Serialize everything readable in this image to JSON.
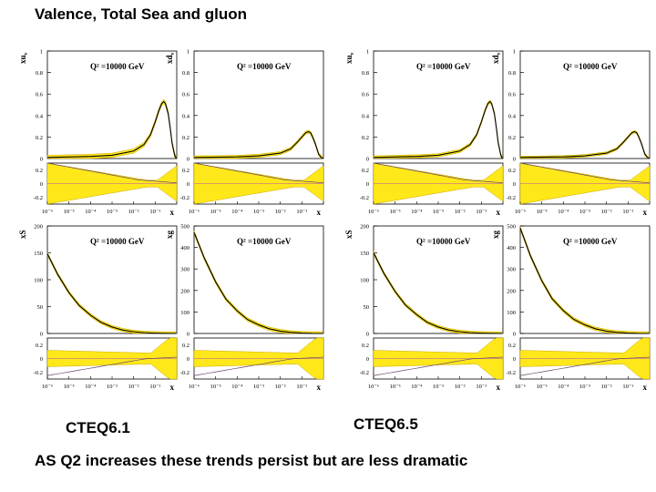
{
  "slide": {
    "title": "Valence, Total Sea and gluon",
    "left_label": "CTEQ6.1",
    "right_label": "CTEQ6.5",
    "caption": "AS Q2 increases these trends persist but are less dramatic"
  },
  "colors": {
    "band": "#ffe81a",
    "band_edge": "#c9a800",
    "central": "#000000",
    "ratio_line": "#d08080",
    "ratio_curve": "#6a4a6a"
  },
  "chart_data": [
    {
      "id": "cteq61-xuv",
      "set": "CTEQ6.1",
      "type": "line",
      "ylabel": "xu",
      "ylabel_sub": "v",
      "annotation": "Q² =10000 GeV",
      "xscale": "log",
      "xlim": [
        1e-06,
        1
      ],
      "ylim": [
        0,
        1
      ],
      "yticks": [
        0,
        0.2,
        0.4,
        0.6,
        0.8,
        1
      ],
      "xlabel": "x",
      "xticks": [
        "10⁻⁶",
        "10⁻⁵",
        "10⁻⁴",
        "10⁻³",
        "10⁻²",
        "10⁻¹"
      ],
      "ratio_ylim": [
        -0.3,
        0.3
      ],
      "ratio_yticks": [
        -0.2,
        0,
        0.2
      ],
      "x": [
        1e-06,
        0.0001,
        0.001,
        0.01,
        0.03,
        0.06,
        0.1,
        0.15,
        0.2,
        0.25,
        0.3,
        0.4,
        0.5,
        0.6,
        0.8,
        0.95
      ],
      "y": [
        0.01,
        0.02,
        0.03,
        0.07,
        0.13,
        0.22,
        0.34,
        0.45,
        0.51,
        0.53,
        0.51,
        0.42,
        0.28,
        0.15,
        0.03,
        0.0
      ],
      "band": 0.02
    },
    {
      "id": "cteq61-xdv",
      "set": "CTEQ6.1",
      "type": "line",
      "ylabel": "xd",
      "ylabel_sub": "v",
      "annotation": "Q² =10000 GeV",
      "xscale": "log",
      "xlim": [
        1e-06,
        1
      ],
      "ylim": [
        0,
        1
      ],
      "yticks": [
        0,
        0.2,
        0.4,
        0.6,
        0.8,
        1
      ],
      "xlabel": "x",
      "xticks": [
        "10⁻⁶",
        "10⁻⁵",
        "10⁻⁴",
        "10⁻³",
        "10⁻²",
        "10⁻¹"
      ],
      "ratio_ylim": [
        -0.3,
        0.3
      ],
      "ratio_yticks": [
        -0.2,
        0,
        0.2
      ],
      "x": [
        1e-06,
        0.0001,
        0.001,
        0.01,
        0.03,
        0.06,
        0.1,
        0.15,
        0.2,
        0.25,
        0.3,
        0.4,
        0.5,
        0.6,
        0.8,
        0.95
      ],
      "y": [
        0.01,
        0.015,
        0.025,
        0.05,
        0.09,
        0.15,
        0.2,
        0.24,
        0.25,
        0.24,
        0.21,
        0.15,
        0.09,
        0.04,
        0.01,
        0.0
      ],
      "band": 0.015
    },
    {
      "id": "cteq65-xuv",
      "set": "CTEQ6.5",
      "type": "line",
      "ylabel": "xu",
      "ylabel_sub": "v",
      "annotation": "Q² =10000 GeV",
      "xscale": "log",
      "xlim": [
        1e-06,
        1
      ],
      "ylim": [
        0,
        1
      ],
      "yticks": [
        0,
        0.2,
        0.4,
        0.6,
        0.8,
        1
      ],
      "xlabel": "x",
      "xticks": [
        "10⁻⁶",
        "10⁻⁵",
        "10⁻⁴",
        "10⁻³",
        "10⁻²",
        "10⁻¹"
      ],
      "ratio_ylim": [
        -0.3,
        0.3
      ],
      "ratio_yticks": [
        -0.2,
        0,
        0.2
      ],
      "x": [
        1e-06,
        0.0001,
        0.001,
        0.01,
        0.03,
        0.06,
        0.1,
        0.15,
        0.2,
        0.25,
        0.3,
        0.4,
        0.5,
        0.6,
        0.8,
        0.95
      ],
      "y": [
        0.01,
        0.02,
        0.03,
        0.07,
        0.13,
        0.22,
        0.34,
        0.45,
        0.51,
        0.53,
        0.51,
        0.42,
        0.28,
        0.15,
        0.03,
        0.0
      ],
      "band": 0.015
    },
    {
      "id": "cteq65-xdv",
      "set": "CTEQ6.5",
      "type": "line",
      "ylabel": "xd",
      "ylabel_sub": "v",
      "annotation": "Q² =10000 GeV",
      "xscale": "log",
      "xlim": [
        1e-06,
        1
      ],
      "ylim": [
        0,
        1
      ],
      "yticks": [
        0,
        0.2,
        0.4,
        0.6,
        0.8,
        1
      ],
      "xlabel": "x",
      "xticks": [
        "10⁻⁶",
        "10⁻⁵",
        "10⁻⁴",
        "10⁻³",
        "10⁻²",
        "10⁻¹"
      ],
      "ratio_ylim": [
        -0.3,
        0.3
      ],
      "ratio_yticks": [
        -0.2,
        0,
        0.2
      ],
      "x": [
        1e-06,
        0.0001,
        0.001,
        0.01,
        0.03,
        0.06,
        0.1,
        0.15,
        0.2,
        0.25,
        0.3,
        0.4,
        0.5,
        0.6,
        0.8,
        0.95
      ],
      "y": [
        0.01,
        0.015,
        0.025,
        0.05,
        0.09,
        0.15,
        0.2,
        0.24,
        0.25,
        0.24,
        0.21,
        0.15,
        0.09,
        0.04,
        0.01,
        0.0
      ],
      "band": 0.012
    },
    {
      "id": "cteq61-xs",
      "set": "CTEQ6.1",
      "type": "line",
      "ylabel": "xS",
      "ylabel_sub": "",
      "annotation": "Q² =10000 GeV",
      "xscale": "log",
      "xlim": [
        1e-06,
        1
      ],
      "ylim": [
        0,
        200
      ],
      "yticks": [
        0,
        50,
        100,
        150,
        200
      ],
      "xlabel": "x",
      "xticks": [
        "10⁻⁶",
        "10⁻⁵",
        "10⁻⁴",
        "10⁻³",
        "10⁻²",
        "10⁻¹"
      ],
      "ratio_ylim": [
        -0.3,
        0.3
      ],
      "ratio_yticks": [
        -0.2,
        0,
        0.2
      ],
      "x": [
        1e-06,
        3e-06,
        1e-05,
        3e-05,
        0.0001,
        0.0003,
        0.001,
        0.003,
        0.01,
        0.03,
        0.1,
        0.3,
        0.9
      ],
      "y": [
        148,
        110,
        76,
        52,
        34,
        21,
        12,
        6.5,
        3.2,
        1.5,
        0.6,
        0.1,
        0.0
      ],
      "band": 3
    },
    {
      "id": "cteq61-xg",
      "set": "CTEQ6.1",
      "type": "line",
      "ylabel": "xg",
      "ylabel_sub": "",
      "annotation": "Q² =10000 GeV",
      "xscale": "log",
      "xlim": [
        1e-06,
        1
      ],
      "ylim": [
        0,
        500
      ],
      "yticks": [
        0,
        100,
        200,
        300,
        400,
        500
      ],
      "xlabel": "x",
      "xticks": [
        "10⁻⁶",
        "10⁻⁵",
        "10⁻⁴",
        "10⁻³",
        "10⁻²",
        "10⁻¹"
      ],
      "ratio_ylim": [
        -0.3,
        0.3
      ],
      "ratio_yticks": [
        -0.2,
        0,
        0.2
      ],
      "x": [
        1e-06,
        3e-06,
        1e-05,
        3e-05,
        0.0001,
        0.0003,
        0.001,
        0.003,
        0.01,
        0.03,
        0.1,
        0.3,
        0.9
      ],
      "y": [
        470,
        350,
        240,
        160,
        105,
        65,
        40,
        22,
        11,
        5,
        1.8,
        0.3,
        0.0
      ],
      "band": 8
    },
    {
      "id": "cteq65-xs",
      "set": "CTEQ6.5",
      "type": "line",
      "ylabel": "xS",
      "ylabel_sub": "",
      "annotation": "Q² =10000 GeV",
      "xscale": "log",
      "xlim": [
        1e-06,
        1
      ],
      "ylim": [
        0,
        200
      ],
      "yticks": [
        0,
        50,
        100,
        150,
        200
      ],
      "xlabel": "x",
      "xticks": [
        "10⁻⁶",
        "10⁻⁵",
        "10⁻⁴",
        "10⁻³",
        "10⁻²",
        "10⁻¹"
      ],
      "ratio_ylim": [
        -0.3,
        0.3
      ],
      "ratio_yticks": [
        -0.2,
        0,
        0.2
      ],
      "x": [
        1e-06,
        3e-06,
        1e-05,
        3e-05,
        0.0001,
        0.0003,
        0.001,
        0.003,
        0.01,
        0.03,
        0.1,
        0.3,
        0.9
      ],
      "y": [
        150,
        112,
        78,
        53,
        35,
        21,
        12,
        6.5,
        3.2,
        1.5,
        0.6,
        0.1,
        0.0
      ],
      "band": 3
    },
    {
      "id": "cteq65-xg",
      "set": "CTEQ6.5",
      "type": "line",
      "ylabel": "xg",
      "ylabel_sub": "",
      "annotation": "Q² =10000 GeV",
      "xscale": "log",
      "xlim": [
        1e-06,
        1
      ],
      "ylim": [
        0,
        500
      ],
      "yticks": [
        0,
        100,
        200,
        300,
        400,
        500
      ],
      "xlabel": "x",
      "xticks": [
        "10⁻⁶",
        "10⁻⁵",
        "10⁻⁴",
        "10⁻³",
        "10⁻²",
        "10⁻¹"
      ],
      "ratio_ylim": [
        -0.3,
        0.3
      ],
      "ratio_yticks": [
        -0.2,
        0,
        0.2
      ],
      "x": [
        1e-06,
        3e-06,
        1e-05,
        3e-05,
        0.0001,
        0.0003,
        0.001,
        0.003,
        0.01,
        0.03,
        0.1,
        0.3,
        0.9
      ],
      "y": [
        490,
        360,
        245,
        162,
        106,
        66,
        40,
        22,
        11,
        5,
        1.8,
        0.3,
        0.0
      ],
      "band": 8
    }
  ]
}
